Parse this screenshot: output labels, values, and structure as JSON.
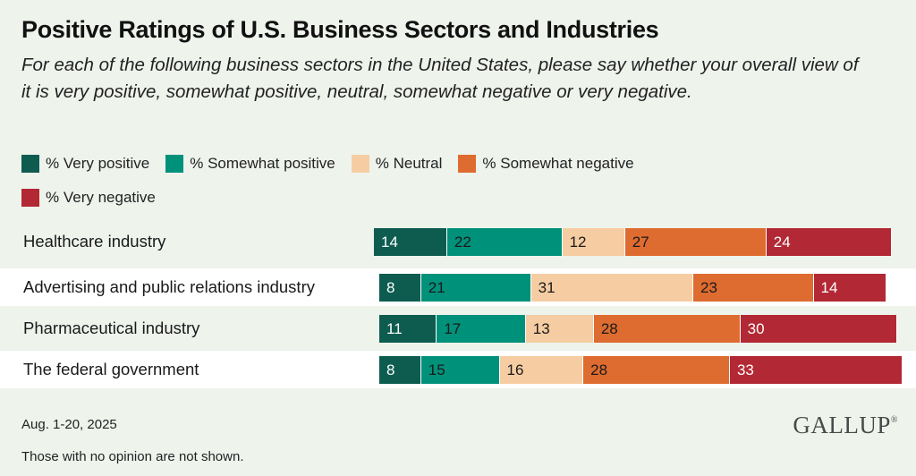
{
  "chart_data": {
    "type": "bar",
    "orientation": "horizontal",
    "stacked": true,
    "title": "Positive Ratings of U.S. Business Sectors and Industries",
    "subtitle": "For each of the following business sectors in the United States, please say whether your overall view of it is very positive, somewhat positive, neutral, somewhat negative or very negative.",
    "categories": [
      "Healthcare industry",
      "Advertising and public relations industry",
      "Pharmaceutical industry",
      "The federal government"
    ],
    "series": [
      {
        "name": "% Very positive",
        "color": "#0d5c4f",
        "label_color": "#ffffff",
        "values": [
          14,
          8,
          11,
          8
        ]
      },
      {
        "name": "% Somewhat positive",
        "color": "#00917b",
        "label_color": "#1a1a1a",
        "values": [
          22,
          21,
          17,
          15
        ]
      },
      {
        "name": "% Neutral",
        "color": "#f6cda2",
        "label_color": "#1a1a1a",
        "values": [
          12,
          31,
          13,
          16
        ]
      },
      {
        "name": "% Somewhat negative",
        "color": "#de6b2f",
        "label_color": "#1a1a1a",
        "values": [
          27,
          23,
          28,
          28
        ]
      },
      {
        "name": "% Very negative",
        "color": "#b22834",
        "label_color": "#ffffff",
        "values": [
          24,
          14,
          30,
          33
        ]
      }
    ],
    "legend_position": "top",
    "grid": false
  },
  "footer": {
    "date": "Aug. 1-20, 2025",
    "note": "Those with no opinion are not shown."
  },
  "logo": {
    "text": "GALLUP",
    "mark": "®"
  }
}
